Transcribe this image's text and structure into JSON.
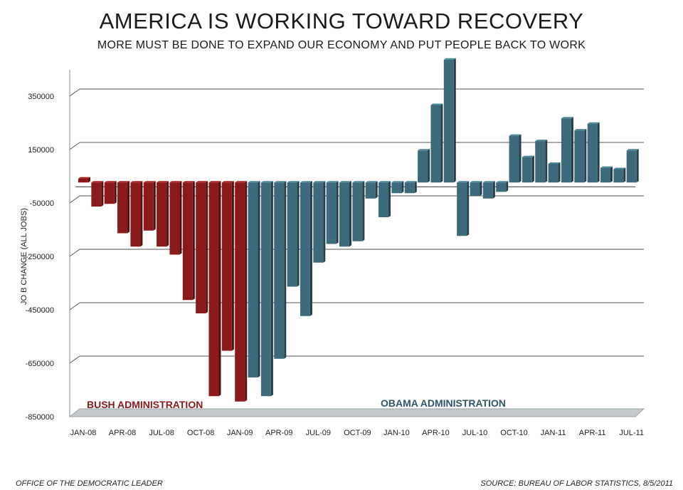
{
  "chart_data": {
    "type": "bar",
    "title": "AMERICA IS WORKING TOWARD RECOVERY",
    "subtitle": "MORE MUST BE DONE TO EXPAND OUR ECONOMY AND PUT PEOPLE BACK TO WORK",
    "xlabel": "",
    "ylabel": "JO B CHANGE (ALL JOBS)",
    "ylim": [
      -850000,
      450000
    ],
    "yticks": [
      350000,
      150000,
      -50000,
      -250000,
      -450000,
      -650000,
      -850000
    ],
    "ytick_labels": [
      "350000",
      "150000",
      "-50000",
      "-250000",
      "-450000",
      "-650000",
      "-850000"
    ],
    "xtick_labels": [
      {
        "index": 0,
        "label": "JAN-08"
      },
      {
        "index": 3,
        "label": "APR-08"
      },
      {
        "index": 6,
        "label": "JUL-08"
      },
      {
        "index": 9,
        "label": "OCT-08"
      },
      {
        "index": 12,
        "label": "JAN-09"
      },
      {
        "index": 15,
        "label": "APR-09"
      },
      {
        "index": 18,
        "label": "JUL-09"
      },
      {
        "index": 21,
        "label": "OCT-09"
      },
      {
        "index": 24,
        "label": "JAN-10"
      },
      {
        "index": 27,
        "label": "APR-10"
      },
      {
        "index": 30,
        "label": "JUL-10"
      },
      {
        "index": 33,
        "label": "OCT-10"
      },
      {
        "index": 36,
        "label": "JAN-11"
      },
      {
        "index": 39,
        "label": "APR-11"
      },
      {
        "index": 42,
        "label": "JUL-11"
      }
    ],
    "grid": true,
    "series": [
      {
        "name": "BUSH ADMINISTRATION",
        "color": "#8b1a1a",
        "start_index": 0,
        "values": [
          15000,
          -90000,
          -80000,
          -190000,
          -240000,
          -180000,
          -240000,
          -270000,
          -440000,
          -490000,
          -800000,
          -630000,
          -820000
        ]
      },
      {
        "name": "OBAMA ADMINISTRATION",
        "color": "#3d6b7c",
        "start_index": 13,
        "values": [
          -730000,
          -800000,
          -660000,
          -390000,
          -500000,
          -300000,
          -230000,
          -240000,
          -220000,
          -60000,
          -130000,
          -40000,
          -40000,
          120000,
          290000,
          460000,
          -200000,
          -50000,
          -60000,
          -35000,
          175000,
          95000,
          155000,
          70000,
          240000,
          195000,
          220000,
          55000,
          50000,
          120000
        ]
      }
    ],
    "annotations": {
      "bush_label": "BUSH ADMINISTRATION",
      "obama_label": "OBAMA ADMINISTRATION"
    }
  },
  "footer": {
    "left": "OFFICE OF THE DEMOCRATIC LEADER",
    "right": "SOURCE: BUREAU OF LABOR STATISTICS, 8/5/2011"
  },
  "colors": {
    "bush": "#8b1a1a",
    "obama": "#3d6b7c",
    "gridline": "#555555",
    "floor": "#c3c9cc"
  }
}
